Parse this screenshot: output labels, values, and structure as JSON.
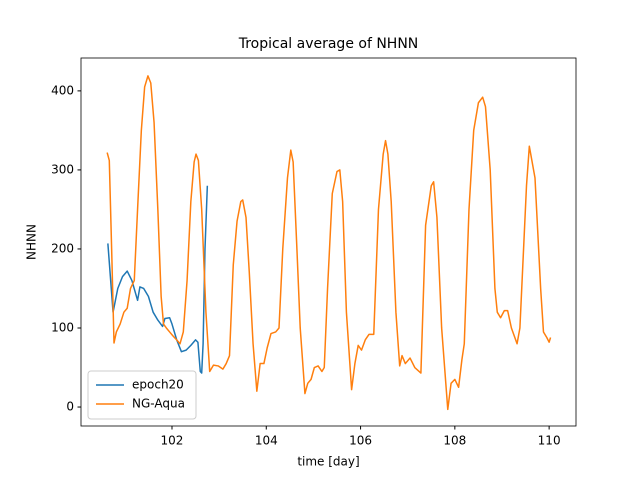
{
  "chart_data": {
    "type": "line",
    "title": "Tropical average of NHNN",
    "x_label": "time [day]",
    "y_label": "NHNN",
    "xlim": [
      100.07,
      110.57
    ],
    "ylim": [
      -24,
      441.6
    ],
    "xticks": [
      102,
      104,
      106,
      108,
      110
    ],
    "yticks": [
      0,
      100,
      200,
      300,
      400
    ],
    "grid": false,
    "legend": "lower left",
    "series": [
      {
        "name": "epoch20",
        "color": "#1f77b4",
        "x": [
          100.64,
          100.75,
          100.85,
          100.95,
          101.05,
          101.15,
          101.27,
          101.32,
          101.4,
          101.5,
          101.6,
          101.7,
          101.8,
          101.85,
          101.95,
          102.0,
          102.1,
          102.2,
          102.3,
          102.4,
          102.5,
          102.55,
          102.6,
          102.63,
          102.66,
          102.7,
          102.75
        ],
        "values": [
          207,
          120,
          150,
          165,
          172,
          160,
          135,
          152,
          150,
          140,
          120,
          110,
          102,
          112,
          113,
          105,
          85,
          70,
          72,
          78,
          85,
          82,
          45,
          43,
          80,
          200,
          280
        ]
      },
      {
        "name": "NG-Aqua",
        "color": "#ff7f0e",
        "x": [
          100.625,
          100.67,
          100.72,
          100.77,
          100.82,
          100.9,
          100.98,
          101.05,
          101.12,
          101.2,
          101.27,
          101.35,
          101.42,
          101.49,
          101.55,
          101.62,
          101.7,
          101.77,
          101.82,
          101.88,
          101.95,
          102.02,
          102.1,
          102.17,
          102.24,
          102.32,
          102.4,
          102.47,
          102.51,
          102.56,
          102.63,
          102.72,
          102.8,
          102.88,
          102.98,
          103.08,
          103.15,
          103.22,
          103.3,
          103.38,
          103.46,
          103.5,
          103.57,
          103.64,
          103.72,
          103.8,
          103.87,
          103.95,
          104.02,
          104.1,
          104.2,
          104.27,
          104.35,
          104.45,
          104.52,
          104.57,
          104.65,
          104.72,
          104.82,
          104.88,
          104.95,
          105.02,
          105.1,
          105.18,
          105.23,
          105.3,
          105.4,
          105.5,
          105.56,
          105.62,
          105.7,
          105.81,
          105.88,
          105.95,
          106.02,
          106.1,
          106.18,
          106.28,
          106.38,
          106.48,
          106.53,
          106.58,
          106.65,
          106.75,
          106.83,
          106.88,
          106.95,
          107.05,
          107.15,
          107.28,
          107.38,
          107.5,
          107.55,
          107.62,
          107.72,
          107.85,
          107.92,
          108.0,
          108.08,
          108.15,
          108.2,
          108.3,
          108.4,
          108.5,
          108.59,
          108.65,
          108.75,
          108.85,
          108.9,
          108.97,
          109.05,
          109.12,
          109.2,
          109.32,
          109.38,
          109.52,
          109.58,
          109.7,
          109.82,
          109.88,
          109.95,
          110.0,
          110.03
        ],
        "values": [
          322,
          312,
          200,
          81,
          95,
          105,
          120,
          125,
          150,
          160,
          250,
          350,
          405,
          419,
          410,
          360,
          250,
          140,
          105,
          100,
          95,
          90,
          85,
          80,
          95,
          160,
          260,
          310,
          320,
          312,
          250,
          120,
          45,
          53,
          52,
          48,
          55,
          65,
          180,
          235,
          260,
          262,
          240,
          170,
          80,
          20,
          55,
          55,
          75,
          93,
          95,
          100,
          200,
          290,
          325,
          310,
          200,
          100,
          17,
          30,
          35,
          50,
          52,
          45,
          50,
          150,
          270,
          298,
          300,
          260,
          120,
          22,
          55,
          78,
          72,
          85,
          92,
          92,
          250,
          320,
          337,
          320,
          260,
          120,
          52,
          65,
          55,
          62,
          50,
          43,
          230,
          280,
          285,
          240,
          100,
          -3,
          30,
          35,
          25,
          60,
          80,
          250,
          350,
          385,
          392,
          380,
          300,
          150,
          120,
          113,
          122,
          122,
          100,
          80,
          100,
          280,
          330,
          290,
          150,
          95,
          88,
          82,
          88
        ]
      }
    ]
  }
}
